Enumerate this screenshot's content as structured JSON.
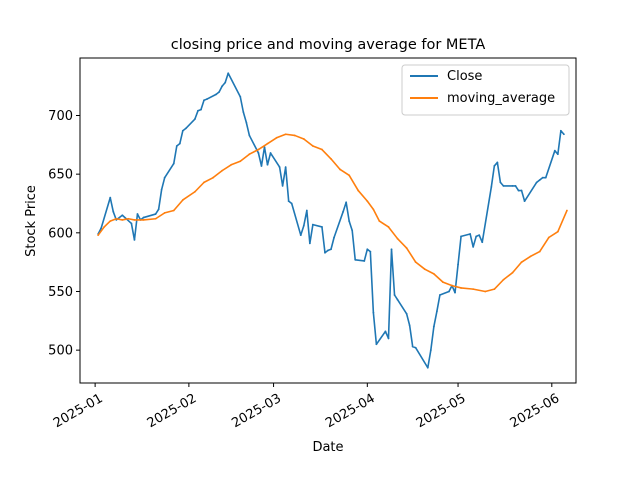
{
  "chart_data": {
    "type": "line",
    "title": "closing price and moving average for META",
    "xlabel": "Date",
    "ylabel": "Stock Price",
    "xlim": [
      "2024-12-27",
      "2025-06-09"
    ],
    "ylim": [
      472,
      749
    ],
    "x_ticks": [
      "2025-01",
      "2025-02",
      "2025-03",
      "2025-04",
      "2025-05",
      "2025-06"
    ],
    "y_ticks": [
      500,
      550,
      600,
      650,
      700
    ],
    "legend_position": "top-right",
    "grid": false,
    "series": [
      {
        "name": "Close",
        "color": "#1f77b4",
        "points": [
          [
            "2025-01-02",
            599
          ],
          [
            "2025-01-03",
            604
          ],
          [
            "2025-01-06",
            630
          ],
          [
            "2025-01-07",
            618
          ],
          [
            "2025-01-08",
            611
          ],
          [
            "2025-01-10",
            615
          ],
          [
            "2025-01-13",
            608
          ],
          [
            "2025-01-14",
            594
          ],
          [
            "2025-01-15",
            616
          ],
          [
            "2025-01-16",
            611
          ],
          [
            "2025-01-17",
            613
          ],
          [
            "2025-01-21",
            616
          ],
          [
            "2025-01-22",
            620
          ],
          [
            "2025-01-23",
            637
          ],
          [
            "2025-01-24",
            647
          ],
          [
            "2025-01-27",
            659
          ],
          [
            "2025-01-28",
            674
          ],
          [
            "2025-01-29",
            676
          ],
          [
            "2025-01-30",
            687
          ],
          [
            "2025-01-31",
            689
          ],
          [
            "2025-02-03",
            697
          ],
          [
            "2025-02-04",
            704
          ],
          [
            "2025-02-05",
            705
          ],
          [
            "2025-02-06",
            713
          ],
          [
            "2025-02-07",
            714
          ],
          [
            "2025-02-10",
            718
          ],
          [
            "2025-02-11",
            720
          ],
          [
            "2025-02-12",
            725
          ],
          [
            "2025-02-13",
            728
          ],
          [
            "2025-02-14",
            736
          ],
          [
            "2025-02-18",
            716
          ],
          [
            "2025-02-19",
            703
          ],
          [
            "2025-02-20",
            694
          ],
          [
            "2025-02-21",
            683
          ],
          [
            "2025-02-24",
            668
          ],
          [
            "2025-02-25",
            657
          ],
          [
            "2025-02-26",
            673
          ],
          [
            "2025-02-27",
            658
          ],
          [
            "2025-02-28",
            668
          ],
          [
            "2025-03-03",
            656
          ],
          [
            "2025-03-04",
            640
          ],
          [
            "2025-03-05",
            656
          ],
          [
            "2025-03-06",
            627
          ],
          [
            "2025-03-07",
            625
          ],
          [
            "2025-03-10",
            598
          ],
          [
            "2025-03-11",
            606
          ],
          [
            "2025-03-12",
            619
          ],
          [
            "2025-03-13",
            591
          ],
          [
            "2025-03-14",
            607
          ],
          [
            "2025-03-17",
            605
          ],
          [
            "2025-03-18",
            583
          ],
          [
            "2025-03-19",
            585
          ],
          [
            "2025-03-20",
            586
          ],
          [
            "2025-03-21",
            596
          ],
          [
            "2025-03-24",
            618
          ],
          [
            "2025-03-25",
            626
          ],
          [
            "2025-03-26",
            610
          ],
          [
            "2025-03-27",
            602
          ],
          [
            "2025-03-28",
            577
          ],
          [
            "2025-03-31",
            576
          ],
          [
            "2025-04-01",
            586
          ],
          [
            "2025-04-02",
            584
          ],
          [
            "2025-04-03",
            532
          ],
          [
            "2025-04-04",
            505
          ],
          [
            "2025-04-07",
            516
          ],
          [
            "2025-04-08",
            510
          ],
          [
            "2025-04-09",
            586
          ],
          [
            "2025-04-10",
            547
          ],
          [
            "2025-04-11",
            543
          ],
          [
            "2025-04-14",
            531
          ],
          [
            "2025-04-15",
            521
          ],
          [
            "2025-04-16",
            503
          ],
          [
            "2025-04-17",
            502
          ],
          [
            "2025-04-21",
            485
          ],
          [
            "2025-04-22",
            500
          ],
          [
            "2025-04-23",
            520
          ],
          [
            "2025-04-24",
            533
          ],
          [
            "2025-04-25",
            547
          ],
          [
            "2025-04-28",
            550
          ],
          [
            "2025-04-29",
            555
          ],
          [
            "2025-04-30",
            549
          ],
          [
            "2025-05-01",
            573
          ],
          [
            "2025-05-02",
            597
          ],
          [
            "2025-05-05",
            599
          ],
          [
            "2025-05-06",
            588
          ],
          [
            "2025-05-07",
            597
          ],
          [
            "2025-05-08",
            598
          ],
          [
            "2025-05-09",
            592
          ],
          [
            "2025-05-12",
            639
          ],
          [
            "2025-05-13",
            657
          ],
          [
            "2025-05-14",
            660
          ],
          [
            "2025-05-15",
            643
          ],
          [
            "2025-05-16",
            640
          ],
          [
            "2025-05-19",
            640
          ],
          [
            "2025-05-20",
            640
          ],
          [
            "2025-05-21",
            636
          ],
          [
            "2025-05-22",
            636
          ],
          [
            "2025-05-23",
            627
          ],
          [
            "2025-05-27",
            643
          ],
          [
            "2025-05-28",
            645
          ],
          [
            "2025-05-29",
            647
          ],
          [
            "2025-05-30",
            647
          ],
          [
            "2025-06-02",
            670
          ],
          [
            "2025-06-03",
            667
          ],
          [
            "2025-06-04",
            687
          ],
          [
            "2025-06-05",
            684
          ]
        ]
      },
      {
        "name": "moving_average",
        "color": "#ff7f0e",
        "points": [
          [
            "2025-01-02",
            598
          ],
          [
            "2025-01-04",
            605
          ],
          [
            "2025-01-06",
            610
          ],
          [
            "2025-01-08",
            612
          ],
          [
            "2025-01-10",
            611
          ],
          [
            "2025-01-12",
            612
          ],
          [
            "2025-01-14",
            611
          ],
          [
            "2025-01-17",
            611
          ],
          [
            "2025-01-21",
            612
          ],
          [
            "2025-01-24",
            617
          ],
          [
            "2025-01-27",
            619
          ],
          [
            "2025-01-30",
            628
          ],
          [
            "2025-02-03",
            635
          ],
          [
            "2025-02-06",
            643
          ],
          [
            "2025-02-09",
            647
          ],
          [
            "2025-02-12",
            653
          ],
          [
            "2025-02-15",
            658
          ],
          [
            "2025-02-18",
            661
          ],
          [
            "2025-02-21",
            667
          ],
          [
            "2025-02-24",
            671
          ],
          [
            "2025-02-27",
            676
          ],
          [
            "2025-03-02",
            681
          ],
          [
            "2025-03-05",
            684
          ],
          [
            "2025-03-08",
            683
          ],
          [
            "2025-03-11",
            680
          ],
          [
            "2025-03-14",
            674
          ],
          [
            "2025-03-17",
            671
          ],
          [
            "2025-03-20",
            663
          ],
          [
            "2025-03-23",
            654
          ],
          [
            "2025-03-26",
            649
          ],
          [
            "2025-03-29",
            636
          ],
          [
            "2025-04-01",
            627
          ],
          [
            "2025-04-03",
            620
          ],
          [
            "2025-04-05",
            610
          ],
          [
            "2025-04-08",
            605
          ],
          [
            "2025-04-11",
            595
          ],
          [
            "2025-04-14",
            587
          ],
          [
            "2025-04-17",
            575
          ],
          [
            "2025-04-20",
            569
          ],
          [
            "2025-04-23",
            565
          ],
          [
            "2025-04-26",
            558
          ],
          [
            "2025-04-29",
            555
          ],
          [
            "2025-05-02",
            553
          ],
          [
            "2025-05-06",
            552
          ],
          [
            "2025-05-10",
            550
          ],
          [
            "2025-05-13",
            552
          ],
          [
            "2025-05-16",
            560
          ],
          [
            "2025-05-19",
            566
          ],
          [
            "2025-05-22",
            575
          ],
          [
            "2025-05-25",
            580
          ],
          [
            "2025-05-28",
            584
          ],
          [
            "2025-05-31",
            596
          ],
          [
            "2025-06-03",
            601
          ],
          [
            "2025-06-06",
            619
          ]
        ]
      }
    ]
  }
}
